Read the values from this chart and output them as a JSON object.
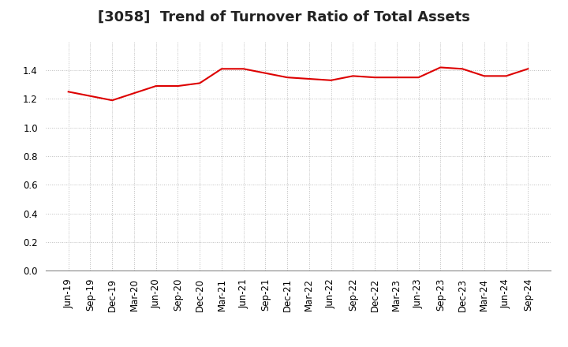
{
  "title": "[3058]  Trend of Turnover Ratio of Total Assets",
  "xlabels": [
    "Jun-19",
    "Sep-19",
    "Dec-19",
    "Mar-20",
    "Jun-20",
    "Sep-20",
    "Dec-20",
    "Mar-21",
    "Jun-21",
    "Sep-21",
    "Dec-21",
    "Mar-22",
    "Jun-22",
    "Sep-22",
    "Dec-22",
    "Mar-23",
    "Jun-23",
    "Sep-23",
    "Dec-23",
    "Mar-24",
    "Jun-24",
    "Sep-24"
  ],
  "values": [
    1.25,
    1.22,
    1.19,
    1.24,
    1.29,
    1.29,
    1.31,
    1.41,
    1.41,
    1.38,
    1.35,
    1.34,
    1.33,
    1.36,
    1.35,
    1.35,
    1.35,
    1.42,
    1.41,
    1.36,
    1.36,
    1.41
  ],
  "line_color": "#dd0000",
  "background_color": "#ffffff",
  "grid_color": "#bbbbbb",
  "ylim": [
    0.0,
    1.6
  ],
  "yticks": [
    0.0,
    0.2,
    0.4,
    0.6,
    0.8,
    1.0,
    1.2,
    1.4
  ],
  "title_fontsize": 13,
  "tick_fontsize": 8.5
}
